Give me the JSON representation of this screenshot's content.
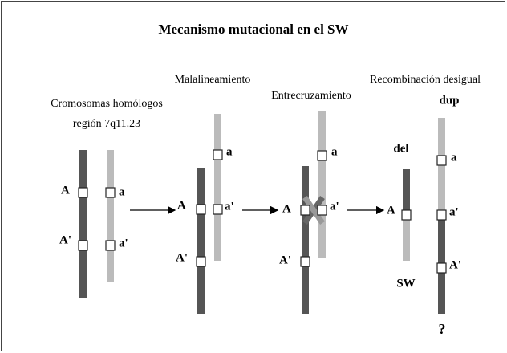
{
  "title": "Mecanismo mutacional en el SW",
  "stages": [
    {
      "label": [
        "Cromosomas homólogos",
        "región 7q11.23"
      ],
      "markers": [
        "A",
        "a",
        "A'",
        "a'"
      ]
    },
    {
      "label": [
        "Malalineamiento"
      ],
      "markers": [
        "a",
        "A",
        "a'",
        "A'"
      ]
    },
    {
      "label": [
        "Entrecruzamiento"
      ],
      "markers": [
        "a",
        "A",
        "a'",
        "A'"
      ]
    },
    {
      "label": [
        "Recombinación desigual"
      ],
      "dup": "dup",
      "del": "del",
      "syndrome": "SW",
      "markers": [
        "A",
        "a",
        "a'",
        "A'"
      ],
      "question": "?"
    }
  ]
}
